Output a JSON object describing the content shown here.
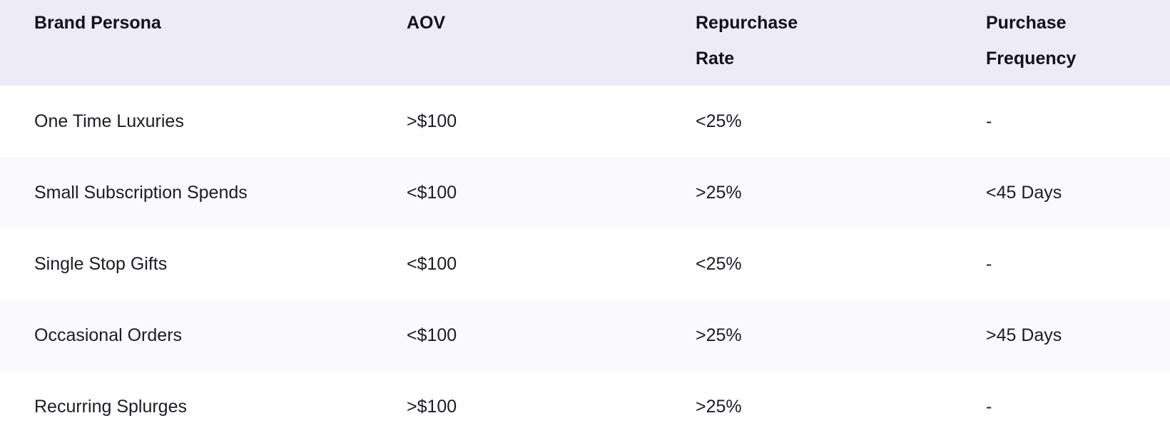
{
  "table": {
    "columns": [
      "Brand Persona",
      "AOV",
      "Repurchase Rate",
      "Purchase Frequency"
    ],
    "rows": [
      [
        "One Time Luxuries",
        ">$100",
        "<25%",
        "-"
      ],
      [
        "Small Subscription Spends",
        "<$100",
        ">25%",
        "<45 Days"
      ],
      [
        "Single Stop Gifts",
        "<$100",
        "<25%",
        "-"
      ],
      [
        "Occasional Orders",
        "<$100",
        ">25%",
        ">45 Days"
      ],
      [
        "Recurring Splurges",
        ">$100",
        ">25%",
        "-"
      ]
    ],
    "colors": {
      "header_bg": "#ECEBF6",
      "row_bg": "#FFFFFF",
      "row_alt_bg": "#FAFAFC",
      "header_text": "#121217",
      "body_text": "#1C1C22"
    }
  }
}
